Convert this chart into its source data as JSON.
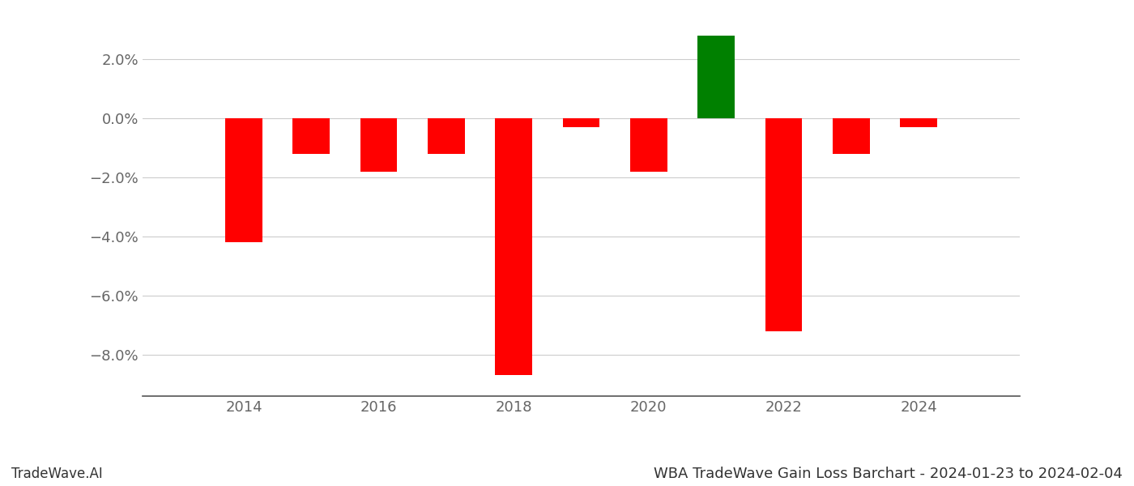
{
  "years": [
    2014,
    2015,
    2016,
    2017,
    2018,
    2019,
    2020,
    2021,
    2022,
    2023,
    2024
  ],
  "values": [
    -0.042,
    -0.012,
    -0.018,
    -0.012,
    -0.087,
    -0.003,
    -0.018,
    0.028,
    -0.072,
    -0.012,
    -0.003
  ],
  "colors": [
    "red",
    "red",
    "red",
    "red",
    "red",
    "red",
    "red",
    "green",
    "red",
    "red",
    "red"
  ],
  "title": "WBA TradeWave Gain Loss Barchart - 2024-01-23 to 2024-02-04",
  "watermark": "TradeWave.AI",
  "ylim": [
    -0.094,
    0.036
  ],
  "ytick_values": [
    0.02,
    0.0,
    -0.02,
    -0.04,
    -0.06,
    -0.08
  ],
  "background_color": "#ffffff",
  "bar_width": 0.55,
  "grid_color": "#cccccc",
  "axis_label_color": "#666666",
  "title_fontsize": 13,
  "watermark_fontsize": 12,
  "tick_fontsize": 13,
  "xlim": [
    2012.5,
    2025.5
  ]
}
